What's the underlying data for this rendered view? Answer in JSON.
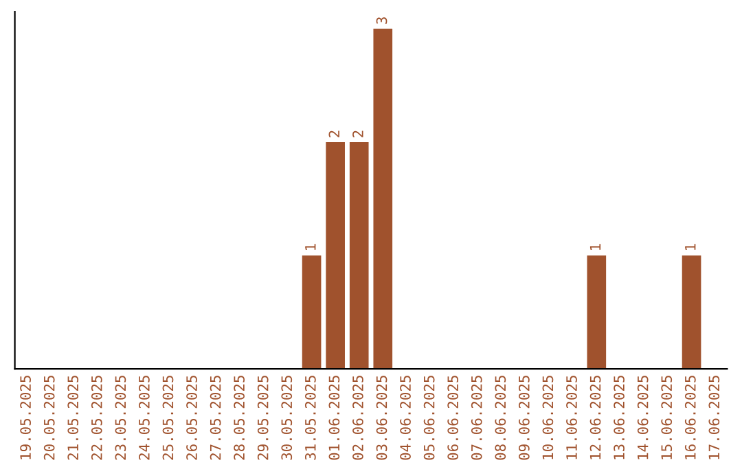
{
  "chart_data": {
    "type": "bar",
    "categories": [
      "19.05.2025",
      "20.05.2025",
      "21.05.2025",
      "22.05.2025",
      "23.05.2025",
      "24.05.2025",
      "25.05.2025",
      "26.05.2025",
      "27.05.2025",
      "28.05.2025",
      "29.05.2025",
      "30.05.2025",
      "31.05.2025",
      "01.06.2025",
      "02.06.2025",
      "03.06.2025",
      "04.06.2025",
      "05.06.2025",
      "06.06.2025",
      "07.06.2025",
      "08.06.2025",
      "09.06.2025",
      "10.06.2025",
      "11.06.2025",
      "12.06.2025",
      "13.06.2025",
      "14.06.2025",
      "15.06.2025",
      "16.06.2025",
      "17.06.2025"
    ],
    "values": [
      null,
      null,
      null,
      null,
      null,
      null,
      null,
      null,
      null,
      null,
      null,
      null,
      1,
      2,
      2,
      3,
      null,
      null,
      null,
      null,
      null,
      null,
      null,
      null,
      1,
      null,
      null,
      null,
      1,
      null
    ],
    "data_labels": true,
    "color": "#a0522d",
    "ylim": [
      0,
      3.15
    ],
    "grid": false,
    "tick_labels": "x"
  }
}
